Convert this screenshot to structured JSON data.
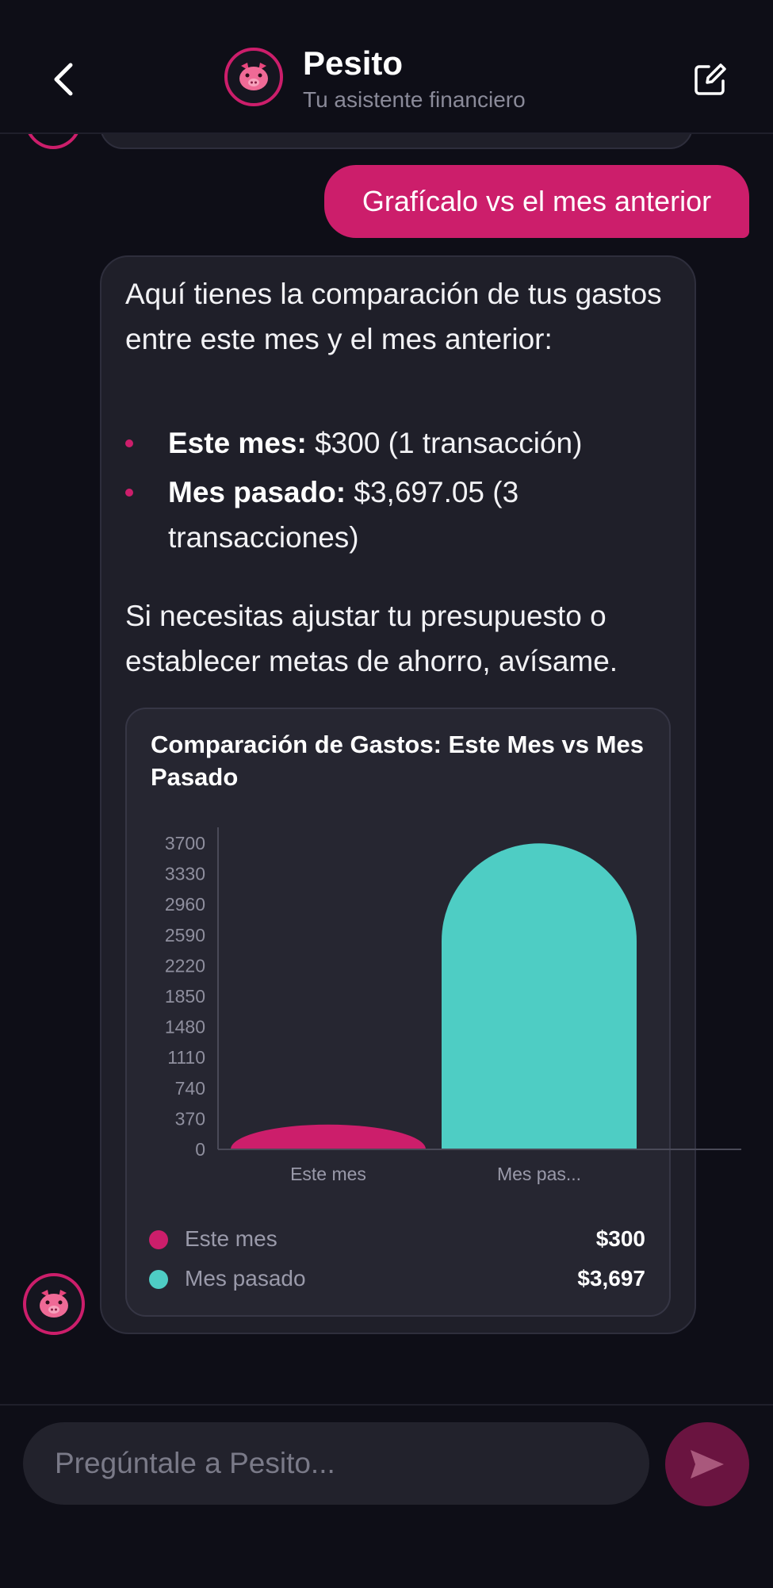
{
  "header": {
    "title": "Pesito",
    "subtitle": "Tu asistente financiero"
  },
  "messages": {
    "user": "Grafícalo vs el mes anterior",
    "bot": {
      "intro": "Aquí tienes la comparación de tus gastos entre este mes y el mes anterior:",
      "bullets": [
        {
          "label": "Este mes:",
          "text": " $300 (1 transacción)"
        },
        {
          "label": "Mes pasado:",
          "text": " $3,697.05 (3 transacciones)"
        }
      ],
      "outro": "Si necesitas ajustar tu presupuesto o establecer metas de ahorro, avísame."
    }
  },
  "chart_card": {
    "legend": [
      {
        "name": "Este mes",
        "value": "$300",
        "color": "#cc1e6b"
      },
      {
        "name": "Mes pasado",
        "value": "$3,697",
        "color": "#4ecdc4"
      }
    ]
  },
  "chart_data": {
    "type": "bar",
    "title": "Comparación de Gastos: Este Mes vs Mes Pasado",
    "categories": [
      "Este mes",
      "Mes pas..."
    ],
    "values": [
      300,
      3697.05
    ],
    "colors": [
      "#cc1e6b",
      "#4ecdc4"
    ],
    "yticks": [
      0,
      370,
      740,
      1110,
      1480,
      1850,
      2220,
      2590,
      2960,
      3330,
      3700
    ],
    "ylim": [
      0,
      3700
    ],
    "xlabel": "",
    "ylabel": "",
    "grid": false,
    "legend_position": "bottom"
  },
  "input": {
    "placeholder": "Pregúntale a Pesito..."
  },
  "icons": {
    "back": "chevron-left-icon",
    "compose": "compose-icon",
    "avatar": "pig-icon",
    "send": "send-icon"
  }
}
